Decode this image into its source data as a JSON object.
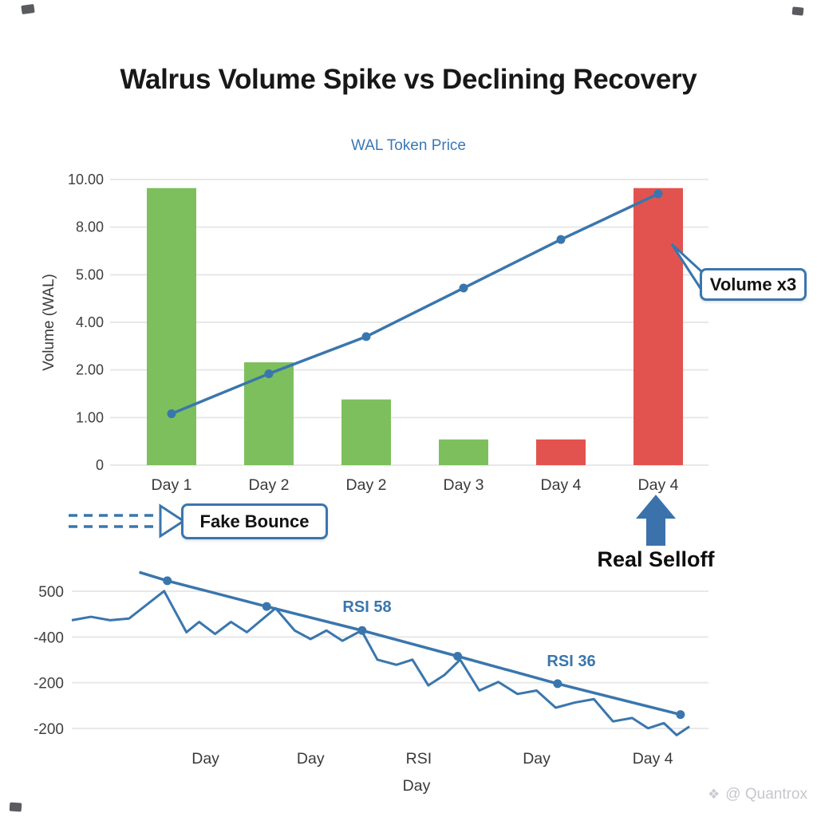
{
  "title": "Walrus Volume Spike vs Declining Recovery",
  "colors": {
    "accent_blue": "#3a76ad",
    "bar_green": "#7dbf5d",
    "bar_red": "#e2534f",
    "grid": "#e8e8e8"
  },
  "watermark": {
    "icon": "diamond-sparkle",
    "handle": "@ Quantrox"
  },
  "chart_data": [
    {
      "type": "bar",
      "title": "WAL Token Price",
      "ylabel": "Volume (WAL)",
      "categories": [
        "Day 1",
        "Day 2",
        "Day 2",
        "Day 3",
        "Day 4",
        "Day 4"
      ],
      "yticks": [
        "10.00",
        "8.00",
        "5.00",
        "4.00",
        "2.00",
        "1.00",
        "0"
      ],
      "ymax": 10,
      "grid": true,
      "legend": "none",
      "series": [
        {
          "name": "Volume",
          "type": "bar",
          "values": [
            9.7,
            3.6,
            2.3,
            0.9,
            0.9,
            9.7
          ],
          "colors": [
            "#7dbf5d",
            "#7dbf5d",
            "#7dbf5d",
            "#7dbf5d",
            "#e2534f",
            "#e2534f"
          ]
        },
        {
          "name": "WAL Token Price",
          "type": "line",
          "color": "#3a76ad",
          "values": [
            1.8,
            3.2,
            4.5,
            6.2,
            7.9,
            9.5
          ]
        }
      ],
      "annotations": {
        "volume": "Volume x3",
        "fake_bounce": "Fake Bounce",
        "real_selloff": "Real Selloff"
      }
    },
    {
      "type": "line",
      "xlabel": "Day",
      "yticks": [
        "500",
        "-400",
        "-200",
        "-200"
      ],
      "xticks": [
        "Day",
        "Day",
        "RSI",
        "Day",
        "Day 4"
      ],
      "grid": true,
      "legend": "none",
      "series": [
        {
          "name": "downtrend",
          "type": "line",
          "color": "#3a76ad",
          "width": 3.5,
          "markers": true,
          "marker_start": 1,
          "points": [
            [
              10.6,
              99
            ],
            [
              15,
              94
            ],
            [
              30.6,
              79
            ],
            [
              45.6,
              65
            ],
            [
              60.6,
              50
            ],
            [
              76.3,
              34
            ],
            [
              95.6,
              16
            ]
          ]
        },
        {
          "name": "rsi",
          "type": "line",
          "color": "#3a76ad",
          "width": 3,
          "markers": false,
          "points": [
            [
              0,
              71
            ],
            [
              3,
              73
            ],
            [
              6,
              71
            ],
            [
              9,
              72
            ],
            [
              14.5,
              88
            ],
            [
              18,
              64
            ],
            [
              20,
              70
            ],
            [
              22.5,
              63
            ],
            [
              25,
              70
            ],
            [
              27.5,
              64
            ],
            [
              32,
              78
            ],
            [
              35,
              65
            ],
            [
              37.5,
              60
            ],
            [
              40,
              65
            ],
            [
              42.5,
              59
            ],
            [
              45.5,
              65
            ],
            [
              48,
              48
            ],
            [
              51,
              45
            ],
            [
              53.5,
              48
            ],
            [
              56,
              33
            ],
            [
              58.5,
              39
            ],
            [
              61,
              48
            ],
            [
              64,
              30
            ],
            [
              67,
              35
            ],
            [
              70,
              28
            ],
            [
              73,
              30
            ],
            [
              76,
              20
            ],
            [
              79,
              23
            ],
            [
              82,
              25
            ],
            [
              85,
              12
            ],
            [
              88,
              14
            ],
            [
              90.5,
              8
            ],
            [
              93,
              11
            ],
            [
              95,
              4
            ],
            [
              97,
              9
            ]
          ]
        }
      ],
      "annotations": {
        "rsi_mid": "RSI 58",
        "rsi_low": "RSI 36"
      }
    }
  ]
}
